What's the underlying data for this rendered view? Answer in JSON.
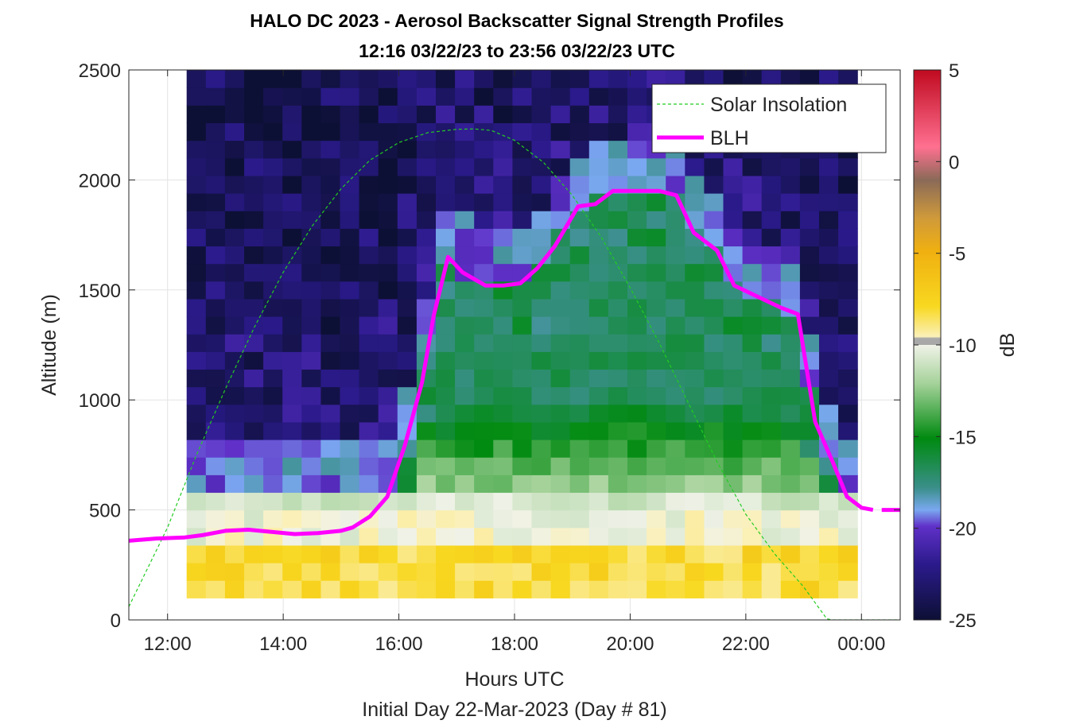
{
  "chart_data": {
    "type": "heatmap",
    "title": "HALO DC 2023 - Aerosol Backscatter Signal Strength Profiles",
    "subtitle": "12:16 03/22/23 to 23:56 03/22/23  UTC",
    "xlabel": "Hours UTC",
    "xlabel2": "Initial Day 22-Mar-2023 (Day # 81)",
    "ylabel": "Altitude (m)",
    "colorbar_label": "dB",
    "xlim": [
      11.33,
      24.67
    ],
    "ylim": [
      0,
      2500
    ],
    "x_ticks": [
      12,
      14,
      16,
      18,
      20,
      22,
      24
    ],
    "x_tick_labels": [
      "12:00",
      "14:00",
      "16:00",
      "18:00",
      "20:00",
      "22:00",
      "00:00"
    ],
    "y_ticks": [
      0,
      500,
      1000,
      1500,
      2000,
      2500
    ],
    "y_tick_labels": [
      "0",
      "500",
      "1000",
      "1500",
      "2000",
      "2500"
    ],
    "clim": [
      -25,
      5
    ],
    "colorbar_ticks": [
      -25,
      -20,
      -15,
      -10,
      -5,
      0,
      5
    ],
    "colorbar_tick_labels": [
      "-25",
      "-20",
      "-15",
      "-10",
      "-5",
      "0",
      "5"
    ],
    "grid": true,
    "legend_position": "top-right",
    "heatmap": {
      "x_range_hours": [
        12.33,
        23.93
      ],
      "y_range_m": [
        100,
        2500
      ],
      "cols": 35,
      "rows": 30,
      "description_values": "dB backscatter signal, estimated"
    },
    "series": [
      {
        "name": "Solar Insolation",
        "style": "dashed",
        "color": "#22cc22",
        "x": [
          11.33,
          12.0,
          12.5,
          13.0,
          13.5,
          14.0,
          14.5,
          15.0,
          15.5,
          16.0,
          16.5,
          17.0,
          17.3,
          17.6,
          18.0,
          18.5,
          19.0,
          19.5,
          20.0,
          20.5,
          21.0,
          21.5,
          22.0,
          22.5,
          23.0,
          23.4,
          23.5,
          24.67
        ],
        "y": [
          60,
          420,
          750,
          1050,
          1330,
          1580,
          1790,
          1960,
          2090,
          2170,
          2215,
          2230,
          2232,
          2225,
          2180,
          2080,
          1930,
          1740,
          1510,
          1260,
          990,
          720,
          480,
          300,
          150,
          5,
          0,
          0
        ]
      },
      {
        "name": "BLH",
        "style": "solid",
        "color": "#ff00ff",
        "x": [
          11.33,
          11.8,
          12.3,
          12.6,
          13.0,
          13.4,
          13.8,
          14.2,
          14.6,
          15.0,
          15.2,
          15.5,
          15.8,
          16.1,
          16.4,
          16.6,
          16.85,
          17.1,
          17.5,
          17.8,
          18.1,
          18.4,
          18.7,
          19.1,
          19.4,
          19.7,
          20.1,
          20.5,
          20.8,
          21.1,
          21.5,
          21.8,
          22.2,
          22.6,
          22.9,
          23.2,
          23.5,
          23.75,
          24.0,
          24.2
        ],
        "y": [
          360,
          370,
          375,
          385,
          405,
          410,
          400,
          390,
          395,
          405,
          420,
          470,
          560,
          790,
          1080,
          1380,
          1650,
          1580,
          1520,
          1520,
          1530,
          1600,
          1700,
          1880,
          1890,
          1950,
          1950,
          1950,
          1930,
          1760,
          1680,
          1520,
          1470,
          1420,
          1390,
          900,
          720,
          560,
          510,
          500
        ]
      }
    ]
  }
}
